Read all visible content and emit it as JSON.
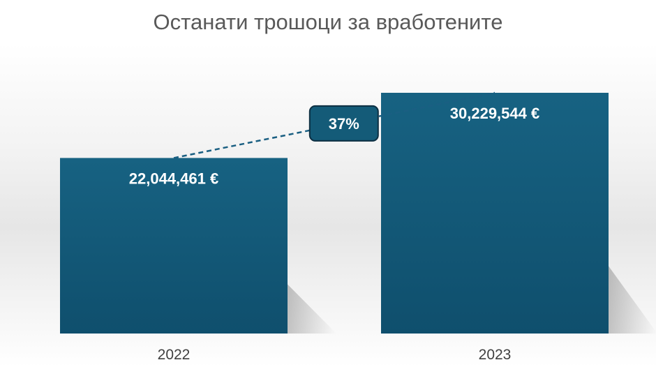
{
  "chart_data": {
    "type": "bar",
    "title": "Останати трошоци за вработените",
    "categories": [
      "2022",
      "2023"
    ],
    "values": [
      22044461,
      30229544
    ],
    "value_labels": [
      "22,044,461 €",
      "30,229,544 €"
    ],
    "change_label": "37%",
    "ylim": [
      0,
      30229544
    ],
    "grid": false,
    "legend": "none",
    "colors": {
      "bar_top": "#176282",
      "bar_bottom": "#0f4f6d",
      "connector": "#1a5f82",
      "badge": "#145b78",
      "badge_border": "#0d2f42"
    }
  }
}
